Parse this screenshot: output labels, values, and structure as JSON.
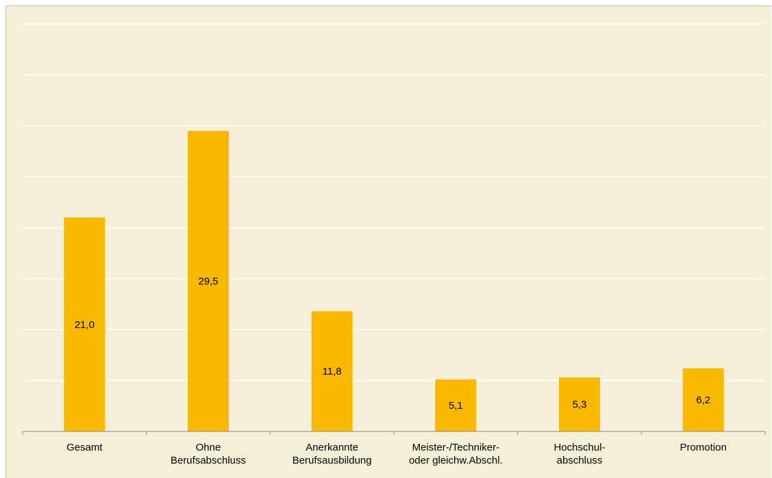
{
  "chart_data": {
    "type": "bar",
    "categories": [
      [
        "Gesamt"
      ],
      [
        "Ohne",
        "Berufsabschluss"
      ],
      [
        "Anerkannte",
        "Berufsausbildung"
      ],
      [
        "Meister-/Techniker-",
        "oder gleichw.Abschl."
      ],
      [
        "Hochschul-",
        "abschluss"
      ],
      [
        "Promotion"
      ]
    ],
    "values": [
      21.0,
      29.5,
      11.8,
      5.1,
      5.3,
      6.2
    ],
    "value_labels": [
      "21,0",
      "29,5",
      "11,8",
      "5,1",
      "5,3",
      "6,2"
    ],
    "ylim": [
      0,
      40
    ],
    "gridline_step": 5,
    "grid": true,
    "colors": {
      "bar": "#fbb800",
      "background": "#f4f0d8",
      "gridline": "#ffffff"
    }
  }
}
